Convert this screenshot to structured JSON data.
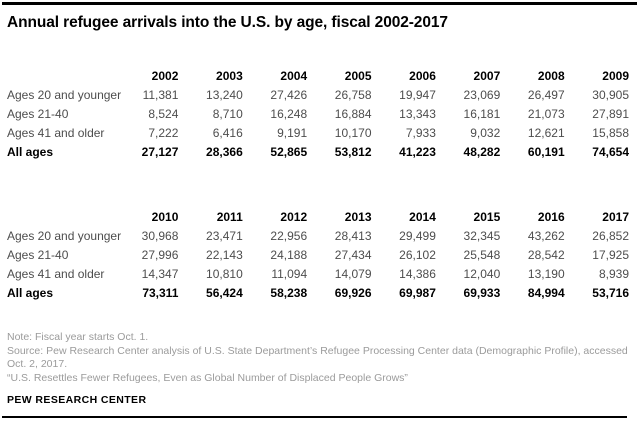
{
  "page": {
    "title": "Annual refugee arrivals into the U.S. by age, fiscal 2002-2017"
  },
  "chart_data": {
    "type": "table",
    "title": "Annual refugee arrivals into the U.S. by age, fiscal 2002-2017",
    "tables": [
      {
        "years": [
          "2002",
          "2003",
          "2004",
          "2005",
          "2006",
          "2007",
          "2008",
          "2009"
        ],
        "rows": [
          {
            "label": "Ages 20 and younger",
            "bold": false,
            "values": [
              "11,381",
              "13,240",
              "27,426",
              "26,758",
              "19,947",
              "23,069",
              "26,497",
              "30,905"
            ]
          },
          {
            "label": "Ages 21-40",
            "bold": false,
            "values": [
              "8,524",
              "8,710",
              "16,248",
              "16,884",
              "13,343",
              "16,181",
              "21,073",
              "27,891"
            ]
          },
          {
            "label": "Ages 41 and older",
            "bold": false,
            "values": [
              "7,222",
              "6,416",
              "9,191",
              "10,170",
              "7,933",
              "9,032",
              "12,621",
              "15,858"
            ]
          },
          {
            "label": "All ages",
            "bold": true,
            "values": [
              "27,127",
              "28,366",
              "52,865",
              "53,812",
              "41,223",
              "48,282",
              "60,191",
              "74,654"
            ]
          }
        ]
      },
      {
        "years": [
          "2010",
          "2011",
          "2012",
          "2013",
          "2014",
          "2015",
          "2016",
          "2017"
        ],
        "rows": [
          {
            "label": "Ages 20 and younger",
            "bold": false,
            "values": [
              "30,968",
              "23,471",
              "22,956",
              "28,413",
              "29,499",
              "32,345",
              "43,262",
              "26,852"
            ]
          },
          {
            "label": "Ages 21-40",
            "bold": false,
            "values": [
              "27,996",
              "22,143",
              "24,188",
              "27,434",
              "26,102",
              "25,548",
              "28,542",
              "17,925"
            ]
          },
          {
            "label": "Ages 41 and older",
            "bold": false,
            "values": [
              "14,347",
              "10,810",
              "11,094",
              "14,079",
              "14,386",
              "12,040",
              "13,190",
              "8,939"
            ]
          },
          {
            "label": "All ages",
            "bold": true,
            "values": [
              "73,311",
              "56,424",
              "58,238",
              "69,926",
              "69,987",
              "69,933",
              "84,994",
              "53,716"
            ]
          }
        ]
      }
    ]
  },
  "footer": {
    "note": "Note: Fiscal year starts Oct. 1.",
    "source": "Source: Pew Research Center analysis of U.S. State Department’s Refugee Processing Center data (Demographic Profile), accessed Oct. 2, 2017.",
    "report_title": "“U.S. Resettles Fewer Refugees, Even as Global Number of Displaced People Grows”",
    "brand": "PEW RESEARCH CENTER"
  },
  "colors": {
    "rule": "#000000",
    "title_text": "#000000",
    "body_text": "#4d4d4d",
    "note_text": "#9b9b9b",
    "background": "#ffffff"
  }
}
